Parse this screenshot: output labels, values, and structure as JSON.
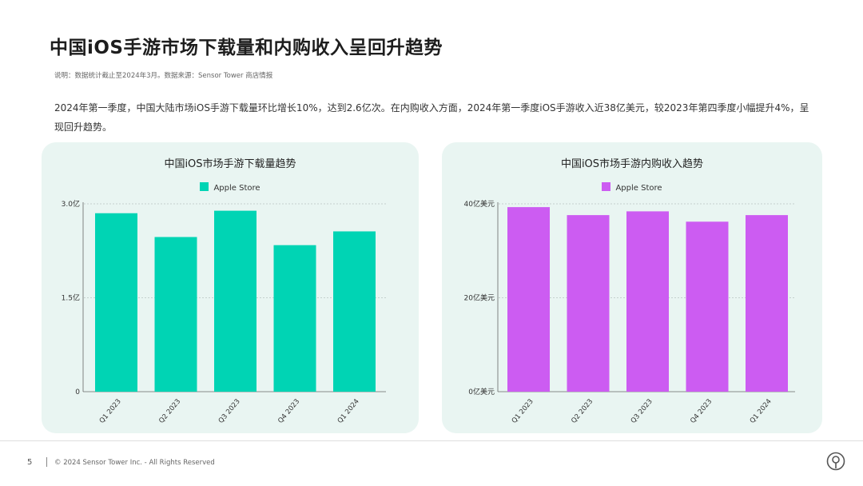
{
  "title": "中国iOS手游市场下载量和内购收入呈回升趋势",
  "note": "说明：数据统计截止至2024年3月。数据来源：Sensor Tower 商店情报",
  "description": "2024年第一季度，中国大陆市场iOS手游下载量环比增长10%，达到2.6亿次。在内购收入方面，2024年第一季度iOS手游收入近38亿美元，较2023年第四季度小幅提升4%，呈现回升趋势。",
  "colors": {
    "teal": "#00d4b4",
    "magenta": "#cc5cf2",
    "panel": "#e9f5f2"
  },
  "chart_data": [
    {
      "type": "bar",
      "title": "中国iOS市场手游下载量趋势",
      "categories": [
        "Q1 2023",
        "Q2 2023",
        "Q3 2023",
        "Q4 2023",
        "Q1 2024"
      ],
      "series": [
        {
          "name": "Apple Store",
          "values": [
            2.85,
            2.47,
            2.89,
            2.34,
            2.56
          ]
        }
      ],
      "ylim": [
        0,
        3.0
      ],
      "yticks": [
        0,
        1.5,
        3.0
      ],
      "ytick_labels": [
        "0",
        "1.5亿",
        "3.0亿"
      ],
      "grid": true,
      "legend": "top-center",
      "color": "#00d4b4"
    },
    {
      "type": "bar",
      "title": "中国iOS市场手游内购收入趋势",
      "categories": [
        "Q1 2023",
        "Q2 2023",
        "Q3 2023",
        "Q4 2023",
        "Q1 2024"
      ],
      "series": [
        {
          "name": "Apple Store",
          "values": [
            39.3,
            37.6,
            38.4,
            36.2,
            37.6
          ]
        }
      ],
      "ylim": [
        0,
        40
      ],
      "yticks": [
        0,
        20,
        40
      ],
      "ytick_labels": [
        "0亿美元",
        "20亿美元",
        "40亿美元"
      ],
      "grid": true,
      "legend": "top-center",
      "color": "#cc5cf2"
    }
  ],
  "footer": {
    "page_number": "5",
    "copyright": "© 2024 Sensor Tower Inc. - All Rights Reserved"
  },
  "icons": {
    "logo": "sensor-tower-logo-icon"
  }
}
